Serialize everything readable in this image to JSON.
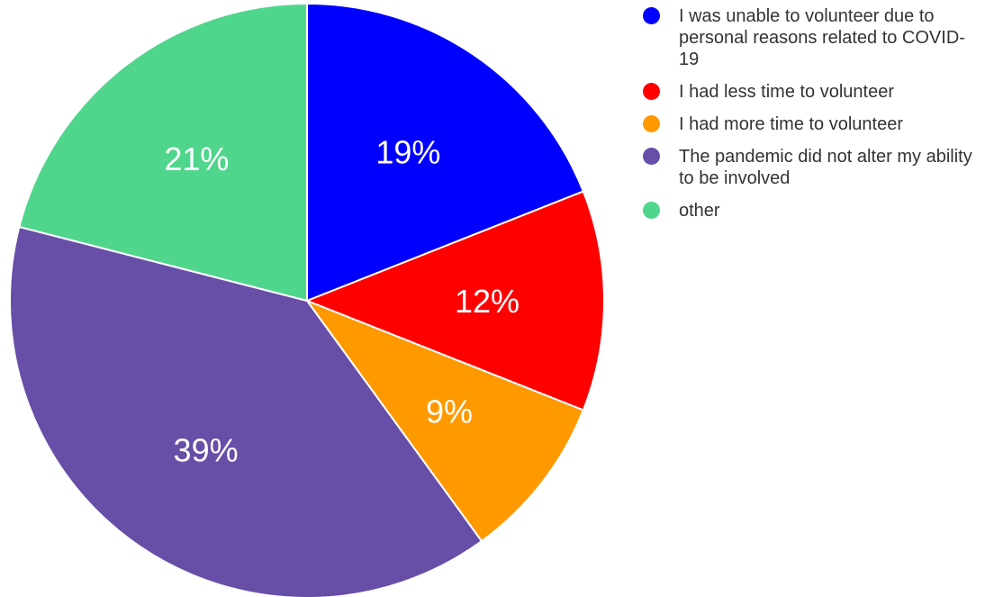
{
  "chart_data": {
    "type": "pie",
    "title": "",
    "legend_position": "right",
    "start_angle_deg": 0,
    "direction": "clockwise",
    "slices": [
      {
        "label": "I was unable to volunteer due to personal reasons related to COVID-19",
        "value": 19,
        "display": "19%",
        "color": "#0000ff"
      },
      {
        "label": "I had less time to volunteer",
        "value": 12,
        "display": "12%",
        "color": "#ff0000"
      },
      {
        "label": "I had more time to volunteer",
        "value": 9,
        "display": "9%",
        "color": "#ff9900"
      },
      {
        "label": "The pandemic did not alter my ability to be involved",
        "value": 39,
        "display": "39%",
        "color": "#674ea7"
      },
      {
        "label": "other",
        "value": 21,
        "display": "21%",
        "color": "#50d58c"
      }
    ]
  }
}
